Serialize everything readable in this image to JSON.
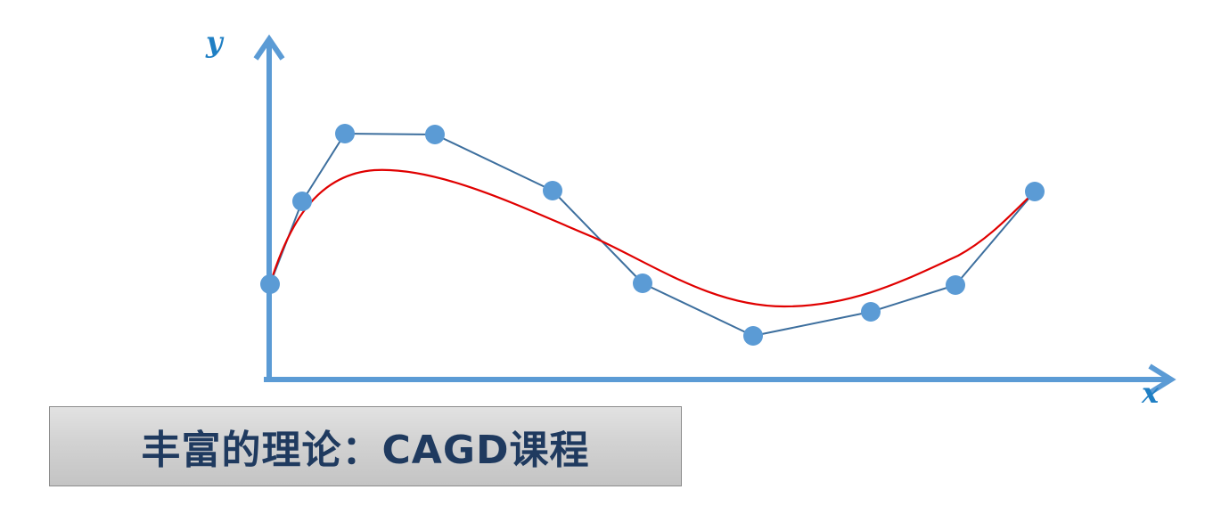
{
  "axes": {
    "x_label": "x",
    "y_label": "y"
  },
  "caption": {
    "text": "丰富的理论：CAGD课程"
  },
  "colors": {
    "axis": "#5b9bd5",
    "axis_label": "#1f7fc4",
    "control_point": "#5b9bd5",
    "control_polygon": "#3d6f9e",
    "curve": "#e00000",
    "caption_text": "#1f3a5f",
    "caption_box": "#d2d2d2"
  }
}
